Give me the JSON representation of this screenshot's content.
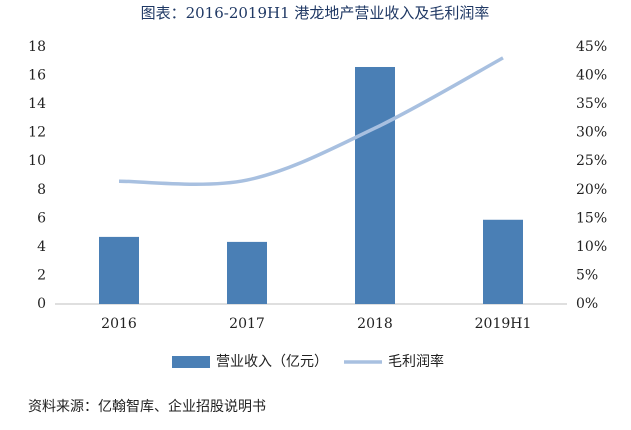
{
  "chart_data": {
    "type": "bar",
    "title": "图表：2016-2019H1 港龙地产营业收入及毛利润率",
    "source": "资料来源：亿翰智库、企业招股说明书",
    "categories": [
      "2016",
      "2017",
      "2018",
      "2019H1"
    ],
    "series": [
      {
        "name": "营业收入（亿元）",
        "type": "bar",
        "color": "#4a7fb5",
        "values": [
          4.7,
          4.35,
          16.6,
          5.9
        ]
      },
      {
        "name": "毛利润率",
        "type": "line",
        "axis": "y2",
        "color": "#a8c0e0",
        "values": [
          21.5,
          21.7,
          30.8,
          43.1
        ]
      }
    ],
    "ylim": [
      0,
      18
    ],
    "yticks": [
      0,
      2,
      4,
      6,
      8,
      10,
      12,
      14,
      16,
      18
    ],
    "y2lim": [
      0,
      45
    ],
    "y2ticks": [
      {
        "value": 0,
        "label": "0%"
      },
      {
        "value": 5,
        "label": "5%"
      },
      {
        "value": 10,
        "label": "10%"
      },
      {
        "value": 15,
        "label": "15%"
      },
      {
        "value": 20,
        "label": "20%"
      },
      {
        "value": 25,
        "label": "25%"
      },
      {
        "value": 30,
        "label": "30%"
      },
      {
        "value": 35,
        "label": "35%"
      },
      {
        "value": 40,
        "label": "40%"
      },
      {
        "value": 45,
        "label": "45%"
      }
    ],
    "grid": false,
    "legend": "bottom"
  }
}
